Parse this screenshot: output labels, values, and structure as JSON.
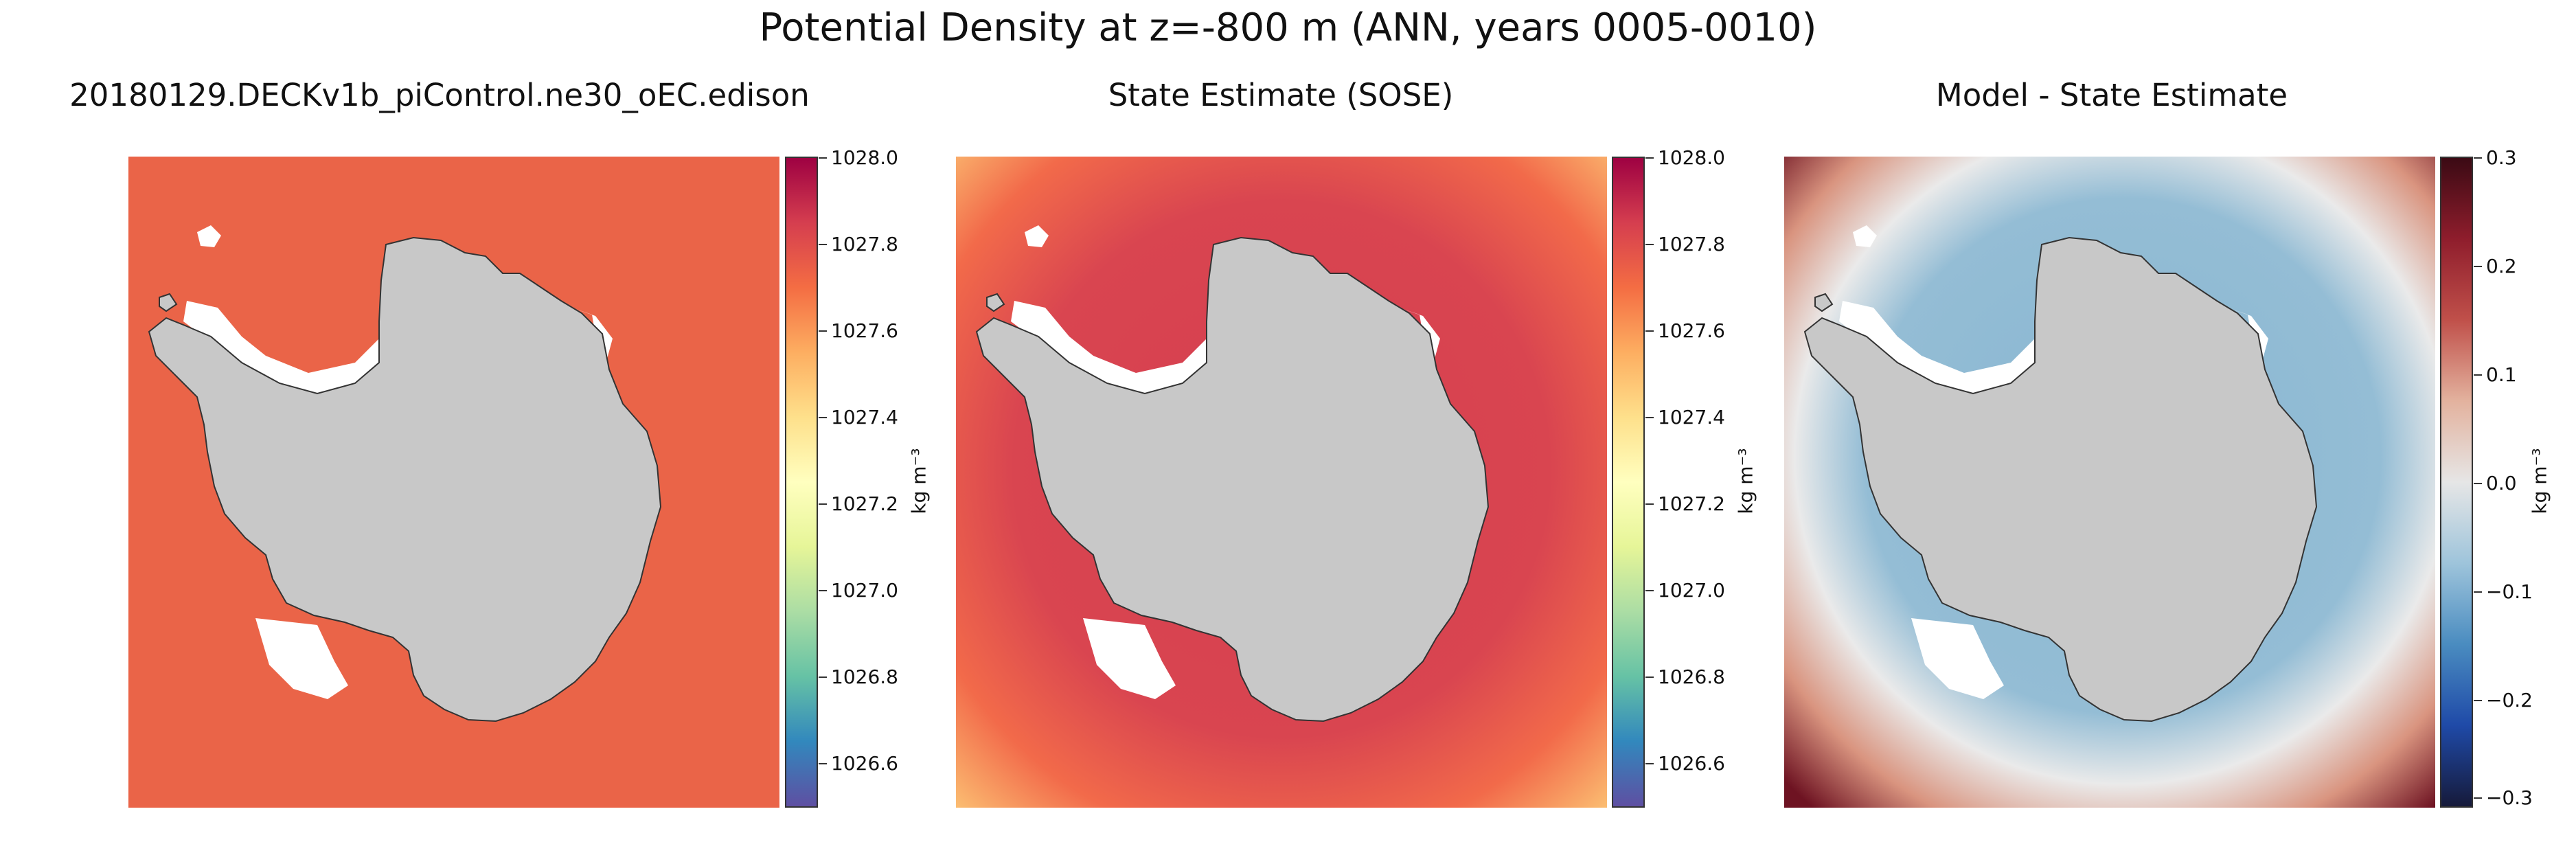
{
  "figure": {
    "title": "Potential Density at z=-800 m (ANN, years 0005-0010)"
  },
  "panels": [
    {
      "title": "20180129.DECKv1b_piControl.ne30_oEC.edison",
      "ocean_color": "#ea6448",
      "colorbar": {
        "ticks": [
          "1028.0",
          "1027.8",
          "1027.6",
          "1027.4",
          "1027.2",
          "1027.0",
          "1026.8",
          "1026.6"
        ],
        "unit": "kg m⁻³"
      }
    },
    {
      "title": "State Estimate (SOSE)",
      "ocean_color": "#d9434f",
      "colorbar": {
        "ticks": [
          "1028.0",
          "1027.8",
          "1027.6",
          "1027.4",
          "1027.2",
          "1027.0",
          "1026.8",
          "1026.6"
        ],
        "unit": "kg m⁻³"
      }
    },
    {
      "title": "Model - State Estimate",
      "ocean_color": "#8fb8d2",
      "colorbar": {
        "ticks": [
          "0.3",
          "0.2",
          "0.1",
          "0.0",
          "−0.1",
          "−0.2",
          "−0.3"
        ],
        "unit": "kg m⁻³"
      }
    }
  ]
}
